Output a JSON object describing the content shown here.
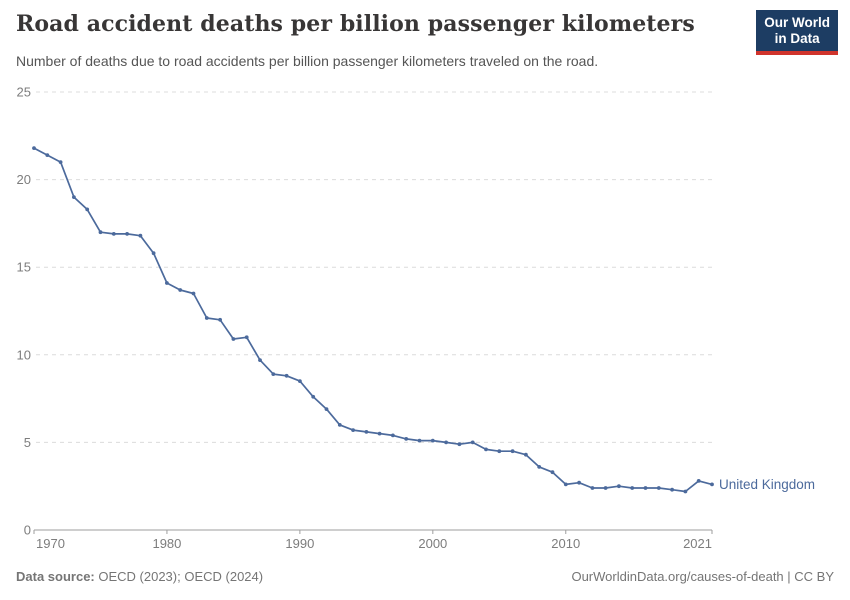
{
  "header": {
    "title": "Road accident deaths per billion passenger kilometers",
    "subtitle": "Number of deaths due to road accidents per billion passenger kilometers traveled on the road.",
    "logo": {
      "line1": "Our World",
      "line2": "in Data",
      "bg_color": "#1d3d63",
      "bar_color": "#d0342c",
      "text_color": "#ffffff"
    }
  },
  "footer": {
    "source_label": "Data source:",
    "source_text": " OECD (2023); OECD (2024)",
    "credit": "OurWorldinData.org/causes-of-death | CC BY"
  },
  "chart_data": {
    "type": "line",
    "title": "Road accident deaths per billion passenger kilometers",
    "subtitle": "Number of deaths due to road accidents per billion passenger kilometers traveled on the road.",
    "xlabel": "",
    "ylabel": "",
    "xlim": [
      1970,
      2021
    ],
    "ylim": [
      0,
      25
    ],
    "x_ticks": [
      1970,
      1980,
      1990,
      2000,
      2010,
      2021
    ],
    "y_ticks": [
      0,
      5,
      10,
      15,
      20,
      25
    ],
    "grid": "horizontal-dashed",
    "legend_position": "end-of-line-label",
    "colors": {
      "grid": "#dcdcdc",
      "axis": "#9e9e9e",
      "tick_label": "#7d7d7d"
    },
    "series": [
      {
        "name": "United Kingdom",
        "color": "#4c6a9c",
        "x": [
          1970,
          1971,
          1972,
          1973,
          1974,
          1975,
          1976,
          1977,
          1978,
          1979,
          1980,
          1981,
          1982,
          1983,
          1984,
          1985,
          1986,
          1987,
          1988,
          1989,
          1990,
          1991,
          1992,
          1993,
          1994,
          1995,
          1996,
          1997,
          1998,
          1999,
          2000,
          2001,
          2002,
          2003,
          2004,
          2005,
          2006,
          2007,
          2008,
          2009,
          2010,
          2011,
          2012,
          2013,
          2014,
          2015,
          2016,
          2017,
          2018,
          2019,
          2020,
          2021
        ],
        "values": [
          21.8,
          21.4,
          21.0,
          19.0,
          18.3,
          17.0,
          16.9,
          16.9,
          16.8,
          15.8,
          14.1,
          13.7,
          13.5,
          12.1,
          12.0,
          10.9,
          11.0,
          9.7,
          8.9,
          8.8,
          8.5,
          7.6,
          6.9,
          6.0,
          5.7,
          5.6,
          5.5,
          5.4,
          5.2,
          5.1,
          5.1,
          5.0,
          4.9,
          5.0,
          4.6,
          4.5,
          4.5,
          4.3,
          3.6,
          3.3,
          2.6,
          2.7,
          2.4,
          2.4,
          2.5,
          2.4,
          2.4,
          2.4,
          2.3,
          2.2,
          2.8,
          2.6
        ]
      }
    ]
  }
}
